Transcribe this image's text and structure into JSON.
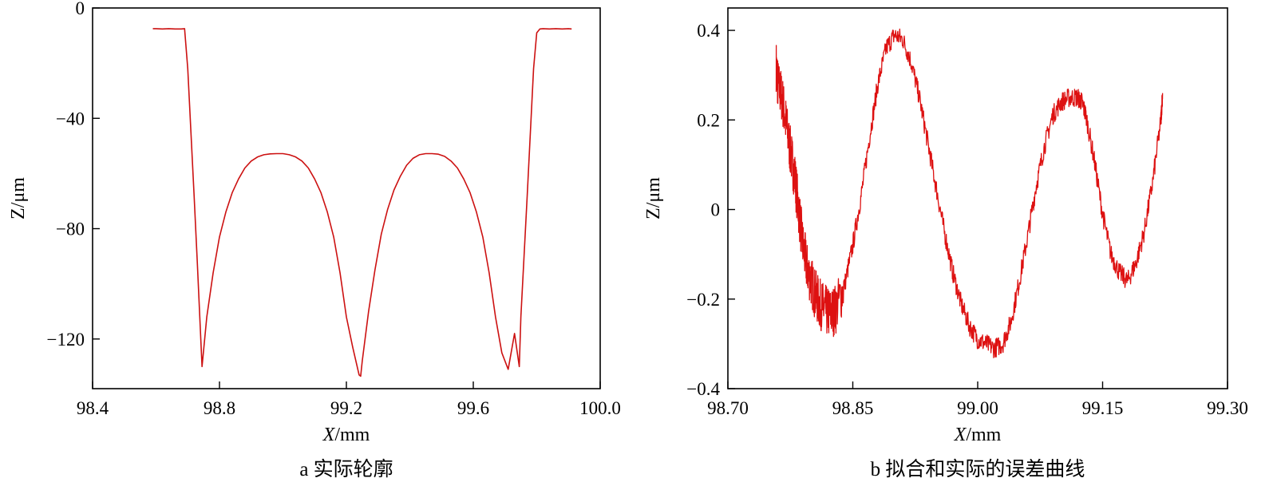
{
  "chart_data": [
    {
      "type": "line",
      "caption": "a 实际轮廓",
      "xlabel_italic": "X",
      "xlabel_unit": "/mm",
      "ylabel": "Z/μm",
      "xlim": [
        98.4,
        100.0
      ],
      "ylim": [
        -138,
        0
      ],
      "x_ticks": [
        98.4,
        98.8,
        99.2,
        99.6,
        100.0
      ],
      "x_tick_labels": [
        "98.4",
        "98.8",
        "99.2",
        "99.6",
        "100.0"
      ],
      "y_ticks": [
        0,
        -40,
        -80,
        -120
      ],
      "y_tick_labels": [
        "0",
        "−40",
        "−80",
        "−120"
      ],
      "line_color": "#cc1111",
      "series": [
        {
          "x": [
            98.59,
            98.6,
            98.62,
            98.64,
            98.66,
            98.68,
            98.69,
            98.7,
            98.71,
            98.72,
            98.73,
            98.745,
            98.76,
            98.78,
            98.8,
            98.82,
            98.84,
            98.86,
            98.88,
            98.9,
            98.92,
            98.94,
            98.96,
            98.98,
            99.0,
            99.02,
            99.04,
            99.06,
            99.08,
            99.1,
            99.12,
            99.14,
            99.16,
            99.18,
            99.2,
            99.22,
            99.24,
            99.245,
            99.25,
            99.27,
            99.29,
            99.31,
            99.33,
            99.35,
            99.37,
            99.39,
            99.41,
            99.43,
            99.45,
            99.47,
            99.49,
            99.51,
            99.53,
            99.55,
            99.57,
            99.59,
            99.61,
            99.63,
            99.65,
            99.67,
            99.69,
            99.71,
            99.73,
            99.745,
            99.75,
            99.76,
            99.77,
            99.78,
            99.79,
            99.8,
            99.81,
            99.82,
            99.84,
            99.86,
            99.88,
            99.9,
            99.91
          ],
          "y": [
            -7.5,
            -7.5,
            -7.6,
            -7.5,
            -7.6,
            -7.6,
            -7.5,
            -22,
            -45,
            -68,
            -92,
            -130,
            -112,
            -96,
            -83,
            -74,
            -67,
            -62,
            -58,
            -55.5,
            -54,
            -53.2,
            -52.9,
            -52.8,
            -52.8,
            -53.2,
            -54,
            -55.5,
            -58,
            -62,
            -67,
            -74,
            -83,
            -96,
            -112,
            -123,
            -133,
            -133.5,
            -128,
            -110,
            -95,
            -82,
            -73,
            -66,
            -61,
            -57,
            -54.5,
            -53.2,
            -52.8,
            -52.8,
            -53,
            -53.8,
            -55.5,
            -58,
            -62,
            -67,
            -74,
            -83,
            -96,
            -112,
            -125,
            -131,
            -118,
            -130,
            -112,
            -90,
            -68,
            -45,
            -22,
            -9,
            -7.6,
            -7.5,
            -7.6,
            -7.5,
            -7.6,
            -7.5,
            -7.6
          ]
        }
      ]
    },
    {
      "type": "line",
      "caption": "b 拟合和实际的误差曲线",
      "xlabel_italic": "X",
      "xlabel_unit": "/mm",
      "ylabel": "Z/μm",
      "xlim": [
        98.7,
        99.3
      ],
      "ylim": [
        -0.4,
        0.45
      ],
      "x_ticks": [
        98.7,
        98.85,
        99.0,
        99.15,
        99.3
      ],
      "x_tick_labels": [
        "98.70",
        "98.85",
        "99.00",
        "99.15",
        "99.30"
      ],
      "y_ticks": [
        0.4,
        0.2,
        0,
        -0.2,
        -0.4
      ],
      "y_tick_labels": [
        "0.4",
        "0.2",
        "0",
        "−0.2",
        "−0.4"
      ],
      "line_color": "#dd1111",
      "series": [
        {
          "x": [
            98.758,
            98.76,
            98.765,
            98.77,
            98.775,
            98.78,
            98.785,
            98.79,
            98.795,
            98.8,
            98.805,
            98.81,
            98.815,
            98.82,
            98.825,
            98.83,
            98.84,
            98.85,
            98.86,
            98.87,
            98.88,
            98.89,
            98.9,
            98.91,
            98.92,
            98.93,
            98.94,
            98.95,
            98.96,
            98.97,
            98.98,
            98.99,
            99.0,
            99.01,
            99.02,
            99.03,
            99.04,
            99.05,
            99.06,
            99.07,
            99.08,
            99.09,
            99.1,
            99.11,
            99.12,
            99.125,
            99.13,
            99.14,
            99.15,
            99.16,
            99.17,
            99.18,
            99.19,
            99.2,
            99.21,
            99.22,
            99.222
          ],
          "y": [
            0.32,
            0.28,
            0.25,
            0.19,
            0.13,
            0.08,
            0.0,
            -0.08,
            -0.13,
            -0.16,
            -0.19,
            -0.21,
            -0.22,
            -0.23,
            -0.23,
            -0.22,
            -0.17,
            -0.08,
            0.03,
            0.16,
            0.28,
            0.36,
            0.39,
            0.38,
            0.33,
            0.25,
            0.15,
            0.05,
            -0.05,
            -0.14,
            -0.21,
            -0.26,
            -0.29,
            -0.3,
            -0.31,
            -0.3,
            -0.25,
            -0.16,
            -0.06,
            0.05,
            0.14,
            0.21,
            0.24,
            0.25,
            0.25,
            0.24,
            0.21,
            0.11,
            -0.01,
            -0.1,
            -0.14,
            -0.16,
            -0.12,
            -0.05,
            0.06,
            0.2,
            0.26
          ]
        }
      ]
    }
  ]
}
